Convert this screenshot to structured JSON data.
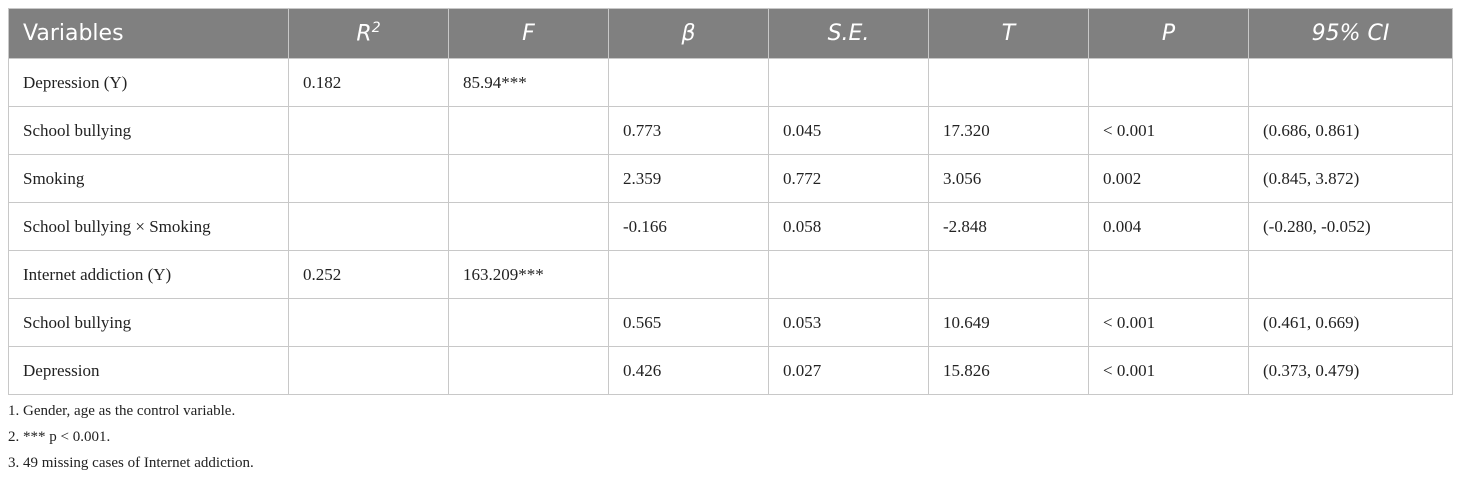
{
  "table": {
    "header": [
      "Variables",
      {
        "text": "R",
        "sup": "2"
      },
      "F",
      "β",
      "S.E.",
      "T",
      "P",
      "95% CI"
    ],
    "rows": [
      [
        "Depression (Y)",
        "0.182",
        "85.94***",
        null,
        null,
        null,
        null,
        null
      ],
      [
        "School bullying",
        null,
        null,
        "0.773",
        "0.045",
        "17.320",
        "< 0.001",
        "(0.686, 0.861)"
      ],
      [
        "Smoking",
        null,
        null,
        "2.359",
        "0.772",
        "3.056",
        "0.002",
        "(0.845, 3.872)"
      ],
      [
        "School bullying × Smoking",
        null,
        null,
        "-0.166",
        "0.058",
        "-2.848",
        "0.004",
        "(-0.280, -0.052)"
      ],
      [
        "Internet addiction (Y)",
        "0.252",
        "163.209***",
        null,
        null,
        null,
        null,
        null
      ],
      [
        "School bullying",
        null,
        null,
        "0.565",
        "0.053",
        "10.649",
        "< 0.001",
        "(0.461, 0.669)"
      ],
      [
        "Depression",
        null,
        null,
        "0.426",
        "0.027",
        "15.826",
        "< 0.001",
        "(0.373, 0.479)"
      ]
    ]
  },
  "footnotes": [
    "1. Gender, age as the control variable.",
    "2. *** p < 0.001.",
    "3. 49 missing cases of Internet addiction."
  ]
}
